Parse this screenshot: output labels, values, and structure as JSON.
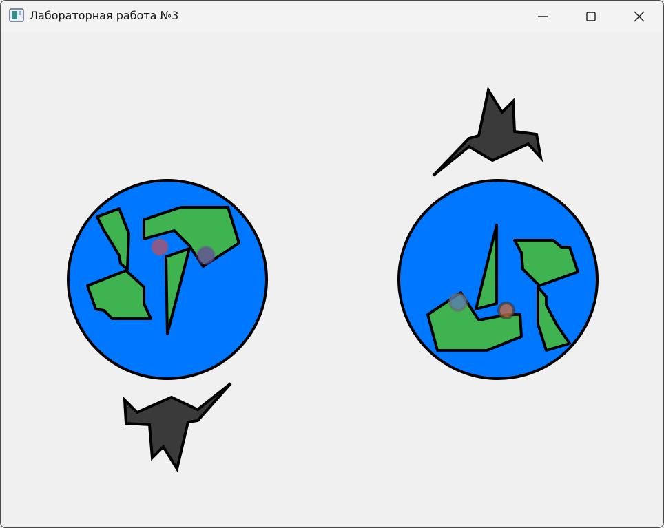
{
  "window": {
    "title": "Лабораторная работа №3",
    "controls": [
      "minimize-icon",
      "maximize-icon",
      "close-icon"
    ]
  },
  "colors": {
    "ocean": "#0077ff",
    "land": "#3fb34f",
    "outline": "#000000",
    "bird": "#3a3a3a",
    "background": "#f0f0f0",
    "marker_red": "#c0505a",
    "marker_purple": "#6a4a9a",
    "marker_blue": "#5a7ab0",
    "marker_orange": "#c06a40"
  }
}
